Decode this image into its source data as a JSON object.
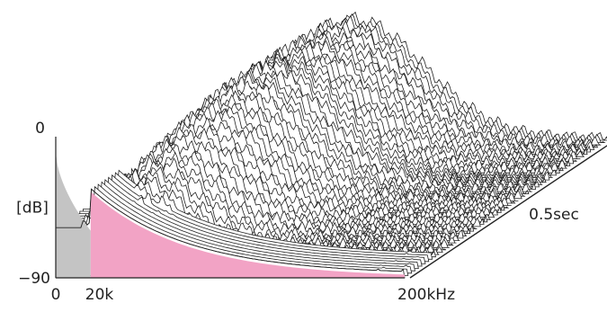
{
  "chart_data": {
    "type": "waterfall",
    "description_hidden": false,
    "x_axis": {
      "unit_label": "200kHz",
      "ticks": [
        {
          "value": 0,
          "label": "0"
        },
        {
          "value": 20,
          "label": "20k"
        },
        {
          "value": 200,
          "label": "200kHz"
        }
      ],
      "range": [
        0,
        200
      ]
    },
    "y_axis": {
      "label": "[dB]",
      "ticks": [
        {
          "value": 0,
          "label": "0"
        },
        {
          "value": -90,
          "label": "−90"
        }
      ],
      "range": [
        -90,
        0
      ]
    },
    "time_axis": {
      "label": "0.5sec",
      "range": [
        0,
        0.5
      ]
    },
    "slice_count": 60,
    "regions": [
      {
        "x_range": [
          0,
          20
        ],
        "color": "#c4c4c4"
      },
      {
        "x_range": [
          20,
          200
        ],
        "color": "#f2a3c5"
      }
    ],
    "line_color": "#222222"
  }
}
